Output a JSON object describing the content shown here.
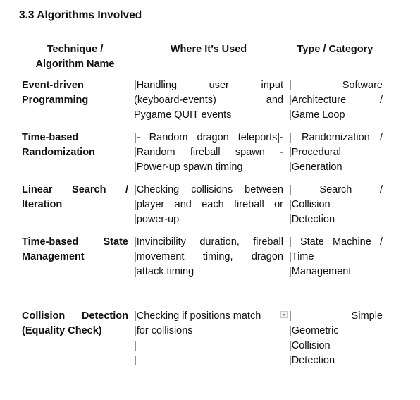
{
  "section": {
    "heading": "3.3 Algorithms Involved"
  },
  "table": {
    "headers": [
      "Technique / Algorithm Name",
      "Where It’s Used",
      "Type / Category"
    ],
    "rows": [
      {
        "technique": "Event-driven Programming",
        "where": [
          "|Handling user input",
          "(keyboard-events) and",
          "Pygame QUIT events"
        ],
        "category": [
          "| Software",
          "|Architecture /",
          "|Game Loop"
        ]
      },
      {
        "technique": "Time-based Randomization",
        "where": [
          "|- Random dragon teleports|-",
          "|Random fireball spawn -",
          "|Power-up spawn timing"
        ],
        "category": [
          "| Randomization /",
          "|Procedural",
          "|Generation"
        ]
      },
      {
        "technique": "Linear Search / Iteration",
        "where": [
          "|Checking collisions between",
          "|player and each fireball or",
          "|power-up"
        ],
        "category": [
          "| Search /",
          "|Collision",
          "|Detection"
        ]
      },
      {
        "technique": "Time-based State Management",
        "where": [
          "|Invincibility duration, fireball",
          "|movement timing, dragon",
          "|attack timing"
        ],
        "category": [
          "| State Machine /",
          "|Time",
          "|Management"
        ]
      },
      {
        "technique": "Collision Detection (Equality Check)",
        "where": [
          "|Checking if positions match",
          "|for collisions",
          "|",
          "|"
        ],
        "category": [
          "| Simple",
          "|Geometric",
          "|Collision",
          "|Detection"
        ]
      }
    ]
  }
}
